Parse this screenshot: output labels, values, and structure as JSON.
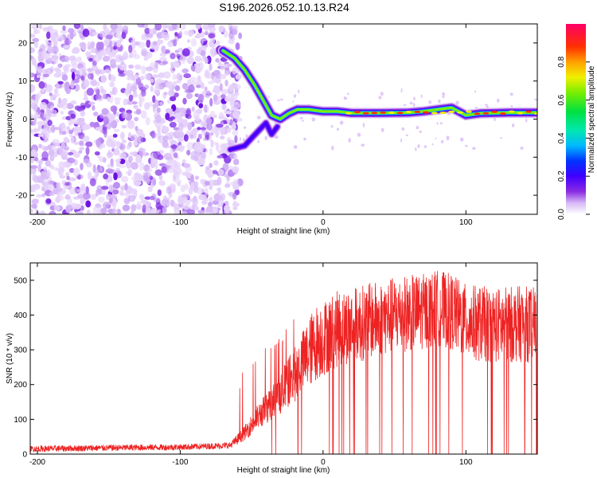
{
  "title": "S196.2026.052.10.13.R24",
  "chart_data": [
    {
      "type": "heatmap",
      "name": "spectrogram",
      "xlabel": "Height of straight line (km)",
      "ylabel": "Frequency (Hz)",
      "xlim": [
        -205,
        150
      ],
      "ylim": [
        -25,
        25
      ],
      "xticks": [
        -200,
        -100,
        0,
        100
      ],
      "yticks": [
        -20,
        -10,
        0,
        10,
        20
      ],
      "colorbar": {
        "label": "Normalized spectral amplitude",
        "range": [
          0,
          1
        ],
        "ticks": [
          0.0,
          0.2,
          0.4,
          0.6,
          0.8
        ],
        "tick_labels": [
          "0.0",
          "0.2",
          "0.4",
          "0.6",
          "0.8"
        ]
      },
      "noise_region_x": [
        -205,
        -62
      ],
      "signal_track": [
        {
          "x": -70,
          "y": 18
        },
        {
          "x": -62,
          "y": 16
        },
        {
          "x": -55,
          "y": 13
        },
        {
          "x": -48,
          "y": 9
        },
        {
          "x": -42,
          "y": 5
        },
        {
          "x": -36,
          "y": 1
        },
        {
          "x": -30,
          "y": 0
        },
        {
          "x": -24,
          "y": 1.5
        },
        {
          "x": -18,
          "y": 2.5
        },
        {
          "x": -10,
          "y": 2.5
        },
        {
          "x": 0,
          "y": 2
        },
        {
          "x": 10,
          "y": 2
        },
        {
          "x": 20,
          "y": 1.6
        },
        {
          "x": 40,
          "y": 1.6
        },
        {
          "x": 60,
          "y": 1.7
        },
        {
          "x": 70,
          "y": 2
        },
        {
          "x": 80,
          "y": 2.5
        },
        {
          "x": 90,
          "y": 3
        },
        {
          "x": 95,
          "y": 2
        },
        {
          "x": 100,
          "y": 1
        },
        {
          "x": 110,
          "y": 1.5
        },
        {
          "x": 130,
          "y": 1.7
        },
        {
          "x": 150,
          "y": 1.7
        }
      ],
      "secondary_track": [
        {
          "x": -65,
          "y": -8
        },
        {
          "x": -55,
          "y": -7
        },
        {
          "x": -50,
          "y": -5
        },
        {
          "x": -45,
          "y": -3
        },
        {
          "x": -40,
          "y": -1
        },
        {
          "x": -36,
          "y": -4
        },
        {
          "x": -32,
          "y": -2
        }
      ]
    },
    {
      "type": "line",
      "name": "snr",
      "xlabel": "Height of straight line (km)",
      "ylabel": "SNR (10 * v/v)",
      "xlim": [
        -205,
        150
      ],
      "ylim": [
        0,
        550
      ],
      "xticks": [
        -200,
        -100,
        0,
        100
      ],
      "yticks": [
        0,
        100,
        200,
        300,
        400,
        500
      ],
      "color": "#ee2222",
      "envelope": {
        "x": [
          -205,
          -150,
          -100,
          -65,
          -55,
          -45,
          -35,
          -20,
          -5,
          10,
          30,
          50,
          70,
          80,
          90,
          100,
          120,
          140,
          150
        ],
        "y": [
          15,
          18,
          20,
          25,
          60,
          110,
          150,
          230,
          320,
          360,
          380,
          400,
          410,
          420,
          410,
          380,
          370,
          375,
          370
        ]
      }
    }
  ]
}
